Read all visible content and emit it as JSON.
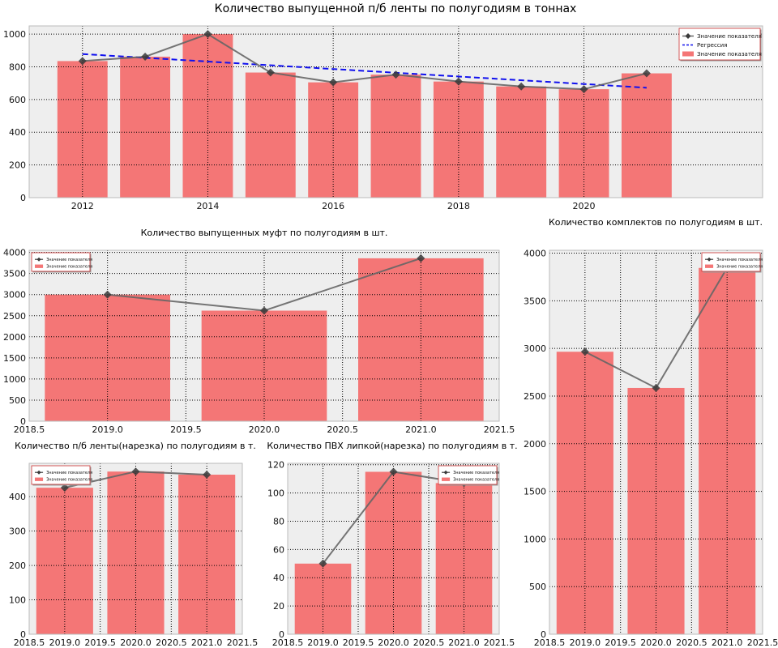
{
  "chart_data": [
    {
      "type": "bar",
      "title": "Количество выпущенной п/б ленты по полугодиям в тоннах",
      "x": [
        2012,
        2013,
        2014,
        2015,
        2016,
        2017,
        2018,
        2019,
        2020,
        2021
      ],
      "values": [
        835,
        862,
        1000,
        765,
        705,
        752,
        710,
        680,
        663,
        760
      ],
      "xlim": [
        2011.15,
        2022.85
      ],
      "ylim": [
        0,
        1050
      ],
      "xticks": [
        2012,
        2014,
        2016,
        2018,
        2020
      ],
      "yticks": [
        0,
        200,
        400,
        600,
        800,
        1000
      ],
      "grid": true,
      "legend_position": "top-right",
      "series": [
        {
          "name": "Значение показателя",
          "kind": "line",
          "marker": "diamond",
          "values": [
            835,
            862,
            1000,
            765,
            705,
            752,
            710,
            680,
            663,
            760
          ]
        },
        {
          "name": "Регрессия",
          "kind": "regression",
          "start": 878,
          "end": 672
        },
        {
          "name": "Значение показателя",
          "kind": "bar",
          "values": [
            835,
            862,
            1000,
            765,
            705,
            752,
            710,
            680,
            663,
            760
          ]
        }
      ]
    },
    {
      "type": "bar",
      "title": "Количество выпущенных муфт по полугодиям в шт.",
      "x": [
        2019,
        2020,
        2021
      ],
      "values": [
        3000,
        2620,
        3860
      ],
      "xlim": [
        2018.5,
        2021.5
      ],
      "ylim": [
        0,
        4050
      ],
      "xticks": [
        "2018.5",
        "2019.0",
        "2019.5",
        "2020.0",
        "2020.5",
        "2021.0",
        "2021.5"
      ],
      "yticks": [
        0,
        500,
        1000,
        1500,
        2000,
        2500,
        3000,
        3500,
        4000
      ],
      "grid": true,
      "legend_position": "top-left",
      "series": [
        {
          "name": "Значение показателя",
          "kind": "line",
          "marker": "diamond",
          "values": [
            3000,
            2620,
            3860
          ]
        },
        {
          "name": "Значение показателя",
          "kind": "bar",
          "values": [
            3000,
            2620,
            3860
          ]
        }
      ]
    },
    {
      "type": "bar",
      "title": "Количество комплектов по полугодиям в шт.",
      "x": [
        2019,
        2020,
        2021
      ],
      "values": [
        2965,
        2585,
        3845
      ],
      "xlim": [
        2018.5,
        2021.5
      ],
      "ylim": [
        0,
        4030
      ],
      "xticks": [
        "2018.5",
        "2019.0",
        "2019.5",
        "2020.0",
        "2020.5",
        "2021.0",
        "2021.5"
      ],
      "yticks": [
        0,
        500,
        1000,
        1500,
        2000,
        2500,
        3000,
        3500,
        4000
      ],
      "grid": true,
      "legend_position": "top-right",
      "series": [
        {
          "name": "Значение показателя",
          "kind": "line",
          "marker": "diamond",
          "values": [
            2965,
            2585,
            3845
          ]
        },
        {
          "name": "Значение показателя",
          "kind": "bar",
          "values": [
            2965,
            2585,
            3845
          ]
        }
      ]
    },
    {
      "type": "bar",
      "title": "Количество п/б ленты(нарезка) по полугодиям в т.",
      "x": [
        2019,
        2020,
        2021
      ],
      "values": [
        426,
        473,
        464
      ],
      "xlim": [
        2018.5,
        2021.5
      ],
      "ylim": [
        0,
        497
      ],
      "xticks": [
        "2018.5",
        "2019.0",
        "2019.5",
        "2020.0",
        "2020.5",
        "2021.0",
        "2021.5"
      ],
      "yticks": [
        0,
        100,
        200,
        300,
        400
      ],
      "grid": true,
      "legend_position": "top-left",
      "series": [
        {
          "name": "Значение показателя",
          "kind": "line",
          "marker": "diamond",
          "values": [
            426,
            473,
            464
          ]
        },
        {
          "name": "Значение показателя",
          "kind": "bar",
          "values": [
            426,
            473,
            464
          ]
        }
      ]
    },
    {
      "type": "bar",
      "title": "Количество ПВХ липкой(нарезка) по полугодиям в т.",
      "x": [
        2019,
        2020,
        2021
      ],
      "values": [
        50,
        115,
        107
      ],
      "xlim": [
        2018.5,
        2021.5
      ],
      "ylim": [
        0,
        121
      ],
      "xticks": [
        "2018.5",
        "2019.0",
        "2019.5",
        "2020.0",
        "2020.5",
        "2021.0",
        "2021.5"
      ],
      "yticks": [
        0,
        20,
        40,
        60,
        80,
        100,
        120
      ],
      "grid": true,
      "legend_position": "top-right",
      "series": [
        {
          "name": "Значение показателя",
          "kind": "line",
          "marker": "diamond",
          "values": [
            50,
            115,
            107
          ]
        },
        {
          "name": "Значение показателя",
          "kind": "bar",
          "values": [
            50,
            115,
            107
          ]
        }
      ]
    }
  ],
  "colors": {
    "bar": "#f47676",
    "line": "#666666",
    "marker": "#3a3a3a",
    "regression": "#1010ee",
    "axes_background": "#eeeeee",
    "grid": "#000000",
    "text": "#000000"
  }
}
